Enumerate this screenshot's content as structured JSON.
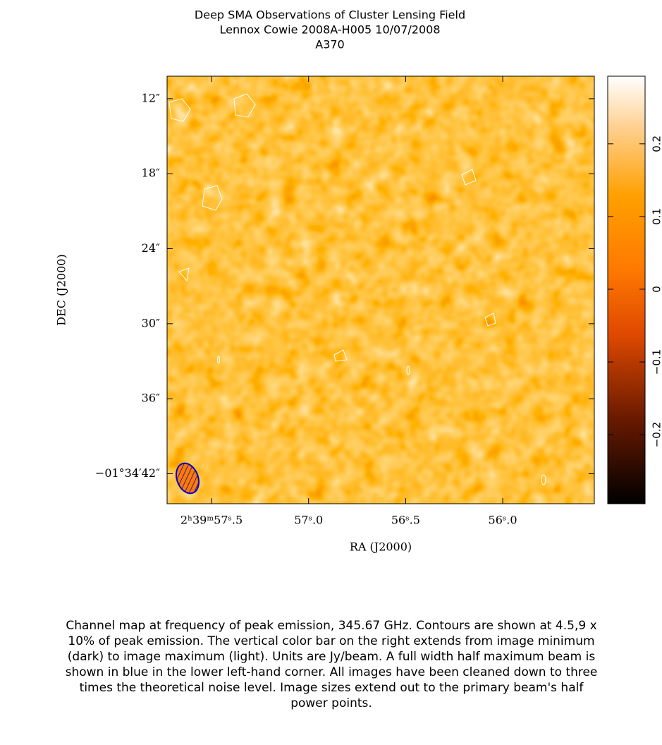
{
  "chart_data": {
    "type": "image",
    "title": [
      "Deep SMA Observations of Cluster Lensing Field",
      "Lennox Cowie   2008A-H005   10/07/2008",
      "A370"
    ],
    "xlabel": "RA (J2000)",
    "ylabel": "DEC (J2000)",
    "xlim": [
      57.729,
      55.528
    ],
    "xticks": [
      {
        "value": 57.5,
        "label": "2ʰ39ᵐ57ˢ.5"
      },
      {
        "value": 57.0,
        "label": "57ˢ.0"
      },
      {
        "value": 56.5,
        "label": "56ˢ.5"
      },
      {
        "value": 56.0,
        "label": "56ˢ.0"
      }
    ],
    "ylim": [
      10.2,
      44.4
    ],
    "yticks": [
      {
        "value": 12,
        "label": "12″"
      },
      {
        "value": 18,
        "label": "18″"
      },
      {
        "value": 24,
        "label": "24″"
      },
      {
        "value": 30,
        "label": "30″"
      },
      {
        "value": 36,
        "label": "36″"
      },
      {
        "value": 42,
        "label": "−01°34′42″"
      }
    ],
    "colorbar": {
      "lim": [
        -0.295,
        0.293
      ],
      "ticks": [
        {
          "value": -0.2,
          "label": "−0.2"
        },
        {
          "value": -0.1,
          "label": "−0.1"
        },
        0,
        0.1,
        0.2
      ]
    },
    "beam_color": "#0000cc",
    "caption": "Channel map at frequency of peak emission, 345.67 GHz.  Contours are shown at 4.5,9 x 10% of peak emission.  The vertical color bar on the right extends from image minimum (dark) to image maximum (light).  Units are Jy/beam.  A full width half maximum beam is shown in blue in the lower left-hand corner.  All images have been cleaned down to three times the theoretical noise level.  Image sizes extend out to the primary beam's half power points."
  }
}
